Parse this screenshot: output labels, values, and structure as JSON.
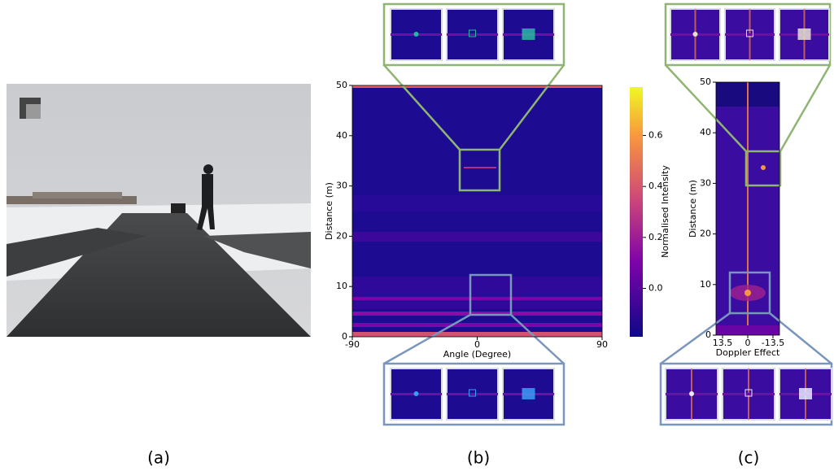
{
  "panels": [
    {
      "label": "(a)"
    },
    {
      "label": "(b)",
      "x_label": "Angle (Degree)",
      "y_label": "Distance (m)",
      "xlim": [
        -90,
        90
      ],
      "xticks": [
        -90,
        0,
        90
      ],
      "ylim": [
        0,
        50
      ],
      "yticks": [
        0,
        10,
        20,
        30,
        40,
        50
      ],
      "colorbar": {
        "label": "Normalised Intensity",
        "lim": [
          -0.19,
          0.79
        ],
        "ticks": [
          {
            "value": 0,
            "label": "0.0"
          },
          0.2,
          0.4,
          0.6
        ]
      }
    },
    {
      "label": "(c)",
      "x_label": "Doppler Effect",
      "y_label": "Distance (m)",
      "xlim": [
        17,
        -17
      ],
      "xticks": [
        13.5,
        0,
        -13.5
      ],
      "ylim": [
        0,
        50
      ],
      "yticks": [
        0,
        10,
        20,
        30,
        40,
        50
      ]
    }
  ]
}
